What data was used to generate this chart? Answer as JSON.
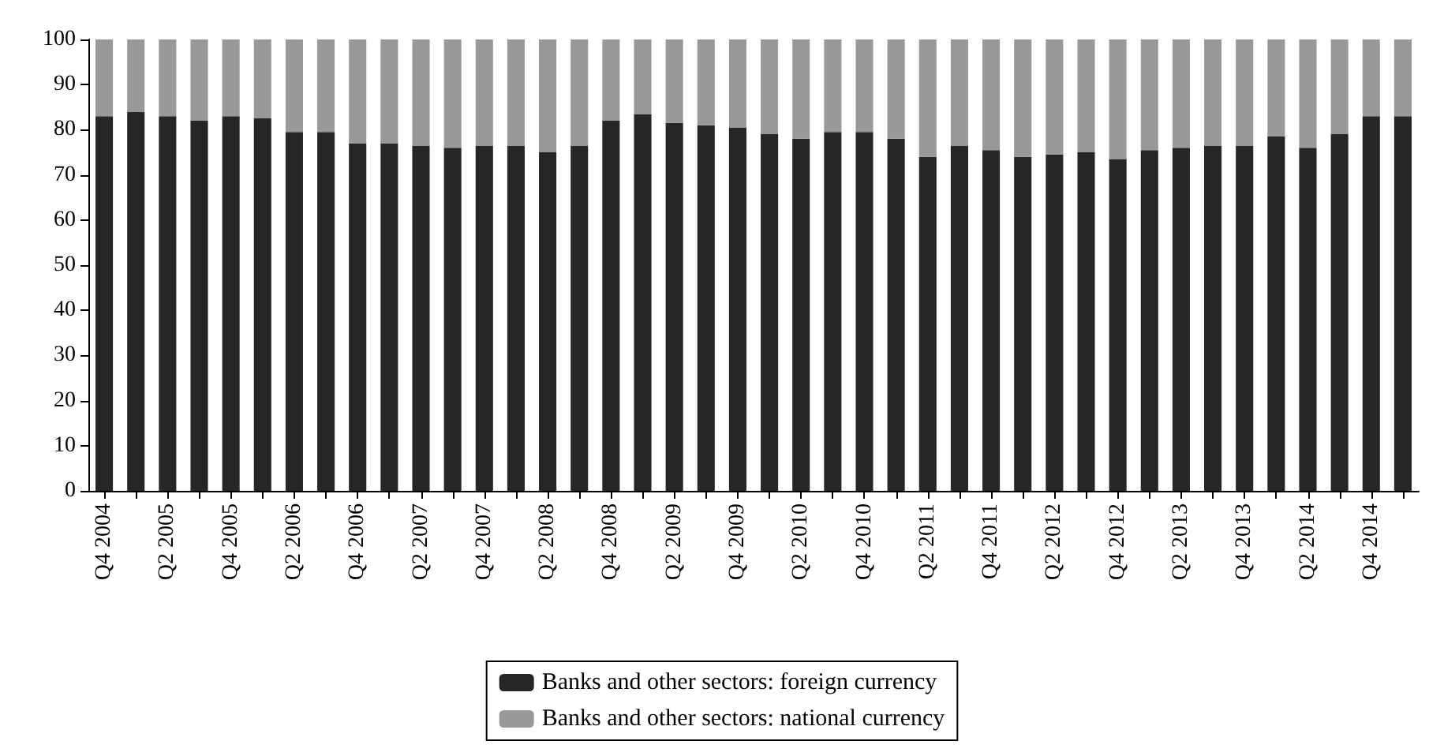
{
  "chart_data": {
    "type": "bar",
    "stacked": true,
    "categories": [
      "Q4 2004",
      null,
      "Q2 2005",
      null,
      "Q4 2005",
      null,
      "Q2 2006",
      null,
      "Q4 2006",
      null,
      "Q2 2007",
      null,
      "Q4 2007",
      null,
      "Q2 2008",
      null,
      "Q4 2008",
      null,
      "Q2 2009",
      null,
      "Q4 2009",
      null,
      "Q2 2010",
      null,
      "Q4 2010",
      null,
      "Q2 2011",
      null,
      "Q4 2011",
      null,
      "Q2 2012",
      null,
      "Q4 2012",
      null,
      "Q2 2013",
      null,
      "Q4 2013",
      null,
      "Q2 2014",
      null,
      "Q4 2014",
      null
    ],
    "series": [
      {
        "name": "Banks and other sectors: foreign currency",
        "color": "#262626",
        "values": [
          83,
          84,
          83,
          82,
          83,
          82.5,
          79.5,
          79.5,
          77,
          77,
          76.5,
          76,
          76.5,
          76.5,
          75,
          76.5,
          82,
          83.5,
          81.5,
          81,
          80.5,
          79,
          78,
          79.5,
          79.5,
          78,
          74,
          76.5,
          75.5,
          74,
          74.5,
          75,
          73.5,
          75.5,
          76,
          76.5,
          76.5,
          78.5,
          76,
          79,
          83,
          83
        ]
      },
      {
        "name": "Banks and other sectors: national currency",
        "color": "#999999",
        "values": [
          17,
          16,
          17,
          18,
          17,
          17.5,
          20.5,
          20.5,
          23,
          23,
          23.5,
          24,
          23.5,
          23.5,
          25,
          23.5,
          18,
          16.5,
          18.5,
          19,
          19.5,
          21,
          22,
          20.5,
          20.5,
          22,
          26,
          23.5,
          24.5,
          26,
          25.5,
          25,
          26.5,
          24.5,
          24,
          23.5,
          23.5,
          21.5,
          24,
          21,
          17,
          17
        ]
      }
    ],
    "ylim": [
      0,
      100
    ],
    "yticks": [
      0,
      10,
      20,
      30,
      40,
      50,
      60,
      70,
      80,
      90,
      100
    ],
    "grid": false,
    "legend": "bottom"
  }
}
